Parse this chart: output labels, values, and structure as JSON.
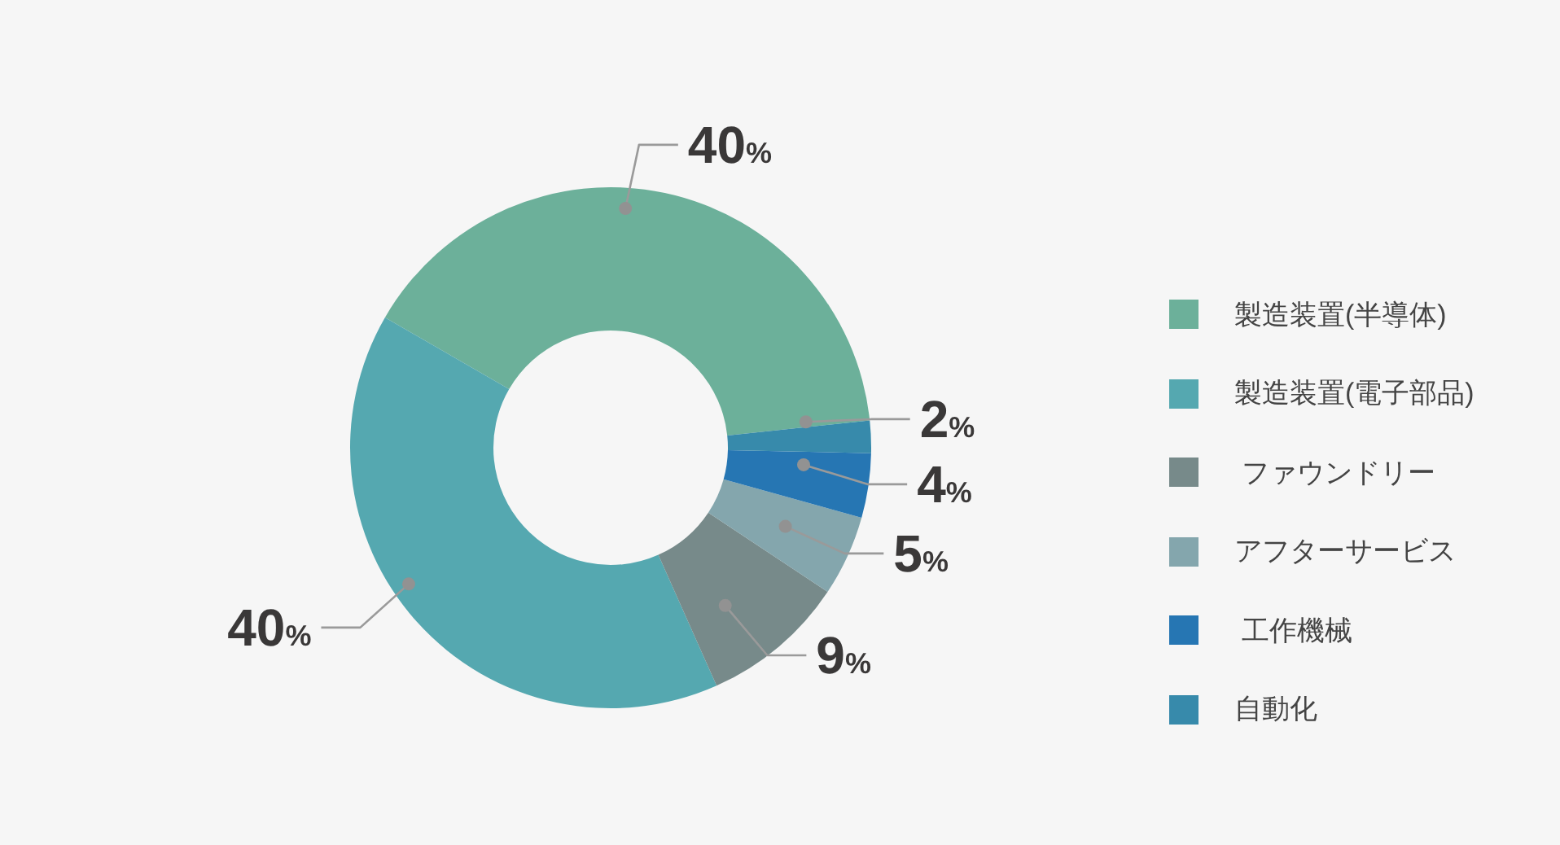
{
  "chart_data": {
    "type": "donut",
    "categories": [
      "製造装置(半導体)",
      "製造装置(電子部品)",
      " ファウンドリー",
      "アフターサービス",
      " 工作機械",
      "自動化"
    ],
    "values": [
      40,
      40,
      9,
      5,
      4,
      2
    ],
    "value_labels": [
      "40%",
      "40%",
      "9%",
      "5%",
      "4%",
      "2%"
    ],
    "colors": [
      "#6cb09a",
      "#55a8b0",
      "#778a8a",
      "#84a6ad",
      "#2676b3",
      "#378aab"
    ],
    "legend": "right"
  }
}
